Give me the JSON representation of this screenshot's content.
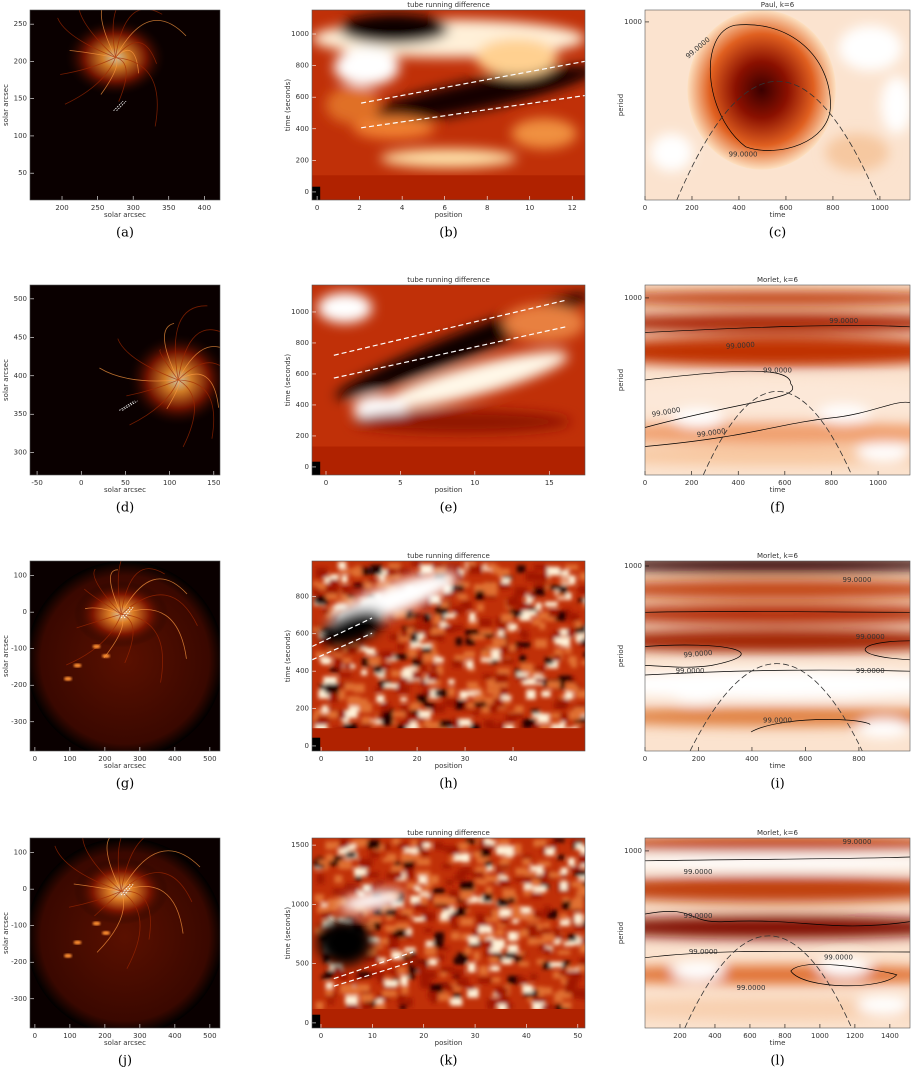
{
  "panels": [
    {
      "label": "(a)",
      "kind": "solar",
      "xlabel": "solar arcsec",
      "ylabel": "solar arcsec",
      "xlim": [
        155,
        422
      ],
      "ylim": [
        14,
        269
      ],
      "xticks": [
        200,
        250,
        300,
        350,
        400
      ],
      "yticks": [
        50,
        100,
        150,
        200,
        250
      ]
    },
    {
      "label": "(b)",
      "kind": "rundiff",
      "title": "tube running difference",
      "xlabel": "position",
      "ylabel": "time (seconds)",
      "xlim": [
        -0.24,
        12.6
      ],
      "ylim": [
        -51,
        1152
      ],
      "xticks": [
        0,
        2,
        4,
        6,
        8,
        10,
        12
      ],
      "yticks": [
        0,
        200,
        400,
        600,
        800,
        1000
      ]
    },
    {
      "label": "(c)",
      "kind": "wavelet",
      "title": "Paul, k=6",
      "xlabel": "time",
      "ylabel": "period",
      "xlim": [
        0,
        1128
      ],
      "ylim": [
        0,
        1067
      ],
      "xticks": [
        0,
        200,
        400,
        600,
        800,
        1000
      ],
      "yticks": [
        1000
      ],
      "contour_labels": [
        "99.0000",
        "99.0000"
      ]
    },
    {
      "label": "(d)",
      "kind": "solar",
      "xlabel": "solar arcsec",
      "ylabel": "solar arcsec",
      "xlim": [
        -58,
        157
      ],
      "ylim": [
        271,
        518
      ],
      "xticks": [
        -50,
        0,
        50,
        100,
        150
      ],
      "yticks": [
        300,
        350,
        400,
        450,
        500
      ]
    },
    {
      "label": "(e)",
      "kind": "rundiff",
      "title": "tube running difference",
      "xlabel": "position",
      "ylabel": "time (seconds)",
      "xlim": [
        -0.94,
        17.4
      ],
      "ylim": [
        -52,
        1174
      ],
      "xticks": [
        0,
        5,
        10,
        15
      ],
      "yticks": [
        0,
        200,
        400,
        600,
        800,
        1000
      ]
    },
    {
      "label": "(f)",
      "kind": "wavelet",
      "title": "Morlet, k=6",
      "xlabel": "time",
      "ylabel": "period",
      "xlim": [
        0,
        1137
      ],
      "ylim": [
        0,
        1073
      ],
      "xticks": [
        0,
        200,
        400,
        600,
        800,
        1000
      ],
      "yticks": [
        1000
      ],
      "contour_labels": [
        "99.0000",
        "99.0000",
        "99.0000",
        "99.0000",
        "99.0000"
      ]
    },
    {
      "label": "(g)",
      "kind": "solar",
      "xlabel": "solar arcsec",
      "ylabel": "solar arcsec",
      "xlim": [
        -14,
        529
      ],
      "ylim": [
        -380,
        140
      ],
      "xticks": [
        0,
        100,
        200,
        300,
        400,
        500
      ],
      "yticks": [
        -300,
        -200,
        -100,
        0,
        100
      ]
    },
    {
      "label": "(h)",
      "kind": "rundiff",
      "title": "tube running difference",
      "xlabel": "position",
      "ylabel": "time (seconds)",
      "xlim": [
        -1.9,
        55
      ],
      "ylim": [
        -27,
        989
      ],
      "xticks": [
        0,
        10,
        20,
        30,
        40
      ],
      "yticks": [
        0,
        200,
        400,
        600,
        800
      ]
    },
    {
      "label": "(i)",
      "kind": "wavelet",
      "title": "Morlet, k=6",
      "xlabel": "time",
      "ylabel": "period",
      "xlim": [
        0,
        991
      ],
      "ylim": [
        0,
        1027
      ],
      "xticks": [
        0,
        200,
        400,
        600,
        800
      ],
      "yticks": [
        1000
      ],
      "contour_labels": [
        "99.0000",
        "99.0000",
        "99.0000",
        "99.0000",
        "99.0000",
        "99.0000"
      ]
    },
    {
      "label": "(j)",
      "kind": "solar",
      "xlabel": "solar arcsec",
      "ylabel": "solar arcsec",
      "xlim": [
        -14,
        529
      ],
      "ylim": [
        -380,
        140
      ],
      "xticks": [
        0,
        100,
        200,
        300,
        400,
        500
      ],
      "yticks": [
        -300,
        -200,
        -100,
        0,
        100
      ]
    },
    {
      "label": "(k)",
      "kind": "rundiff",
      "title": "tube running difference",
      "xlabel": "position",
      "ylabel": "time (seconds)",
      "xlim": [
        -1.75,
        51.4
      ],
      "ylim": [
        -43,
        1560
      ],
      "xticks": [
        0,
        10,
        20,
        30,
        40,
        50
      ],
      "yticks": [
        0,
        500,
        1000,
        1500
      ]
    },
    {
      "label": "(l)",
      "kind": "wavelet",
      "title": "Morlet, k=6",
      "xlabel": "time",
      "ylabel": "period",
      "xlim": [
        0,
        1515
      ],
      "ylim": [
        0,
        1073
      ],
      "xticks": [
        200,
        400,
        600,
        800,
        1000,
        1200,
        1400
      ],
      "yticks": [
        1000
      ],
      "contour_labels": [
        "99.0000",
        "99.0000",
        "99.0000",
        "99.0000",
        "99.0000",
        "99.0000"
      ]
    }
  ]
}
